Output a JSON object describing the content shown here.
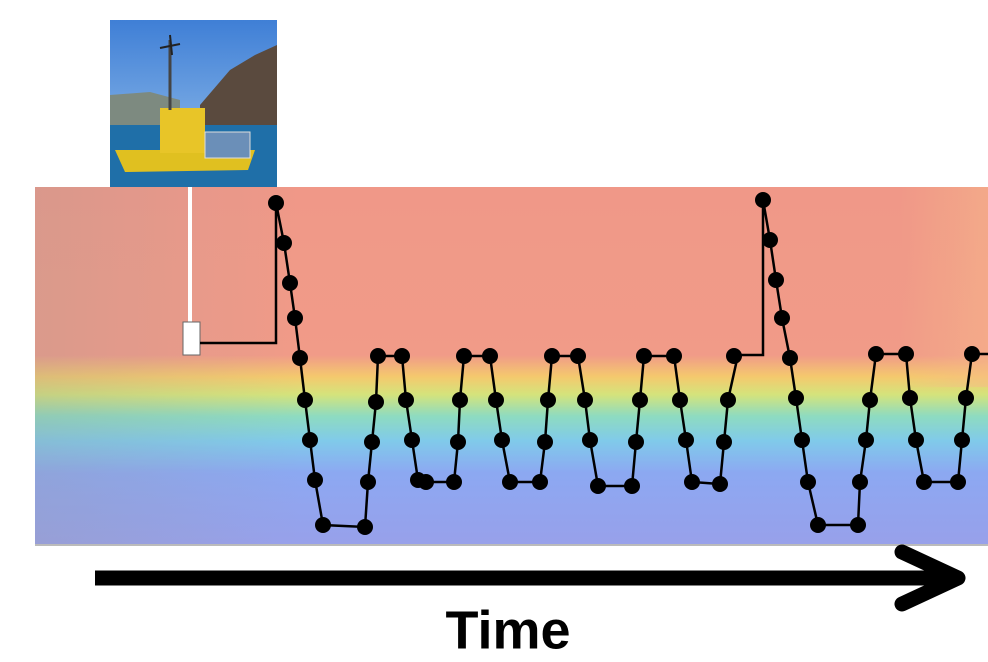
{
  "label": "Time"
}
